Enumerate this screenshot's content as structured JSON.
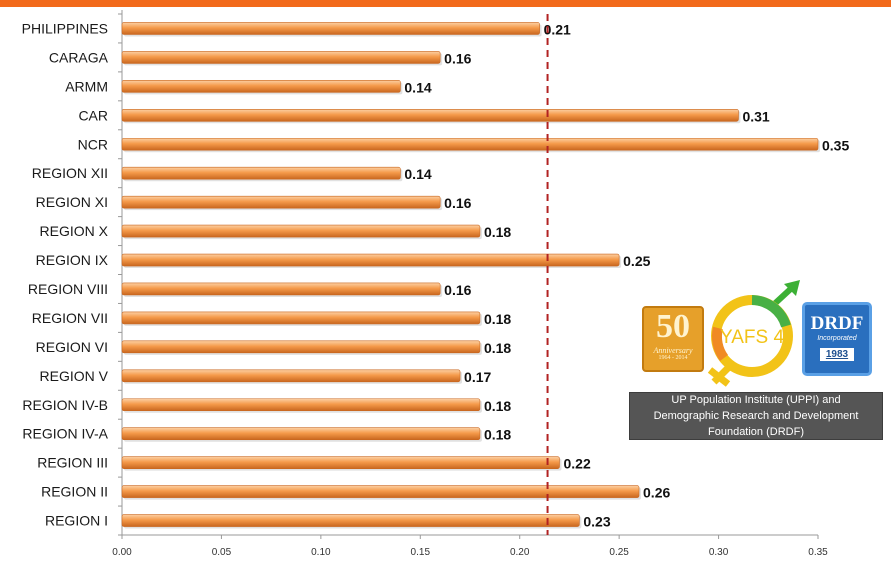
{
  "colors": {
    "top_bar": "#f26a1b",
    "bar_fill": "#f59a4a",
    "bar_highlight": "#fcd0a4",
    "bar_shadow": "#c9671f",
    "reference_line": "#b22222",
    "axis": "#999999"
  },
  "chart_data": {
    "type": "bar",
    "orientation": "horizontal",
    "categories": [
      "PHILIPPINES",
      "CARAGA",
      "ARMM",
      "CAR",
      "NCR",
      "REGION XII",
      "REGION XI",
      "REGION X",
      "REGION IX",
      "REGION VIII",
      "REGION VII",
      "REGION VI",
      "REGION V",
      "REGION IV-B",
      "REGION IV-A",
      "REGION III",
      "REGION II",
      "REGION I"
    ],
    "values": [
      0.21,
      0.16,
      0.14,
      0.31,
      0.35,
      0.14,
      0.16,
      0.18,
      0.25,
      0.16,
      0.18,
      0.18,
      0.17,
      0.18,
      0.18,
      0.22,
      0.26,
      0.23
    ],
    "value_labels": [
      "0.21",
      "0.16",
      "0.14",
      "0.31",
      "0.35",
      "0.14",
      "0.16",
      "0.18",
      "0.25",
      "0.16",
      "0.18",
      "0.18",
      "0.17",
      "0.18",
      "0.18",
      "0.22",
      "0.26",
      "0.23"
    ],
    "xlim": [
      0,
      0.35
    ],
    "x_ticks": [
      "0.00",
      "0.05",
      "0.10",
      "0.15",
      "0.20",
      "0.25",
      "0.30",
      "0.35"
    ],
    "reference_line": {
      "value": 0.214,
      "style": "dashed"
    },
    "grid": false,
    "legend": "none",
    "title": "",
    "xlabel": "",
    "ylabel": ""
  },
  "logos": {
    "uppi_number": "50",
    "uppi_caption": "Anniversary",
    "uppi_years": "1964 - 2014",
    "yafs_text": "YAFS 4",
    "drdf_name": "DRDF",
    "drdf_sub": "Incorporated",
    "drdf_year": "1983"
  },
  "caption": "UP Population Institute (UPPI) and Demographic Research and Development Foundation (DRDF)"
}
